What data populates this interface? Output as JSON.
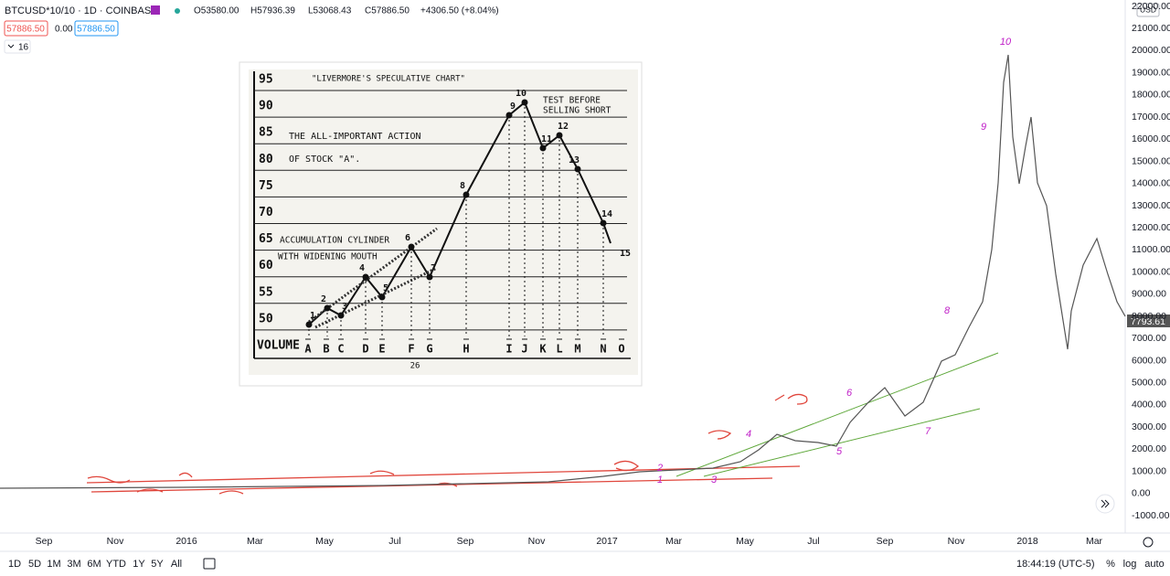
{
  "header": {
    "symbol": "BTCUSD*10/10 · 1D · COINBASE",
    "ohlc": [
      "O53580.00",
      "H57936.39",
      "L53068.43",
      "C57886.50",
      "+4306.50 (+8.04%)"
    ],
    "sell": "57886.50",
    "spread": "0.00",
    "buy": "57886.50",
    "indicators": "16"
  },
  "price_axis": {
    "currency": "USD",
    "labels": [
      "22000.00",
      "21000.00",
      "20000.00",
      "19000.00",
      "18000.00",
      "17000.00",
      "16000.00",
      "15000.00",
      "14000.00",
      "13000.00",
      "12000.00",
      "11000.00",
      "10000.00",
      "9000.00",
      "8000.00",
      "7000.00",
      "6000.00",
      "5000.00",
      "4000.00",
      "3000.00",
      "2000.00",
      "1000.00",
      "0.00",
      "-1000.00"
    ],
    "last_price": "7793.61"
  },
  "time_axis": [
    "Sep",
    "Nov",
    "2016",
    "Mar",
    "May",
    "Jul",
    "Sep",
    "Nov",
    "2017",
    "Mar",
    "May",
    "Jul",
    "Sep",
    "Nov",
    "2018",
    "Mar"
  ],
  "wave_labels": [
    "10",
    "9",
    "8",
    "7",
    "6",
    "5",
    "4",
    "3",
    "2",
    "1"
  ],
  "toolbar": {
    "timeframes": [
      "1D",
      "5D",
      "1M",
      "3M",
      "6M",
      "YTD",
      "1Y",
      "5Y",
      "All"
    ],
    "clock": "18:44:19 (UTC-5)",
    "percent": "%",
    "log": "log",
    "auto": "auto"
  },
  "inset": {
    "title": "\"LIVERMORE'S SPECULATIVE CHART\"",
    "note": [
      "TEST BEFORE",
      "SELLING SHORT"
    ],
    "caption": [
      "THE ALL-IMPORTANT ACTION",
      "OF STOCK \"A\"."
    ],
    "cylinder": [
      "ACCUMULATION CYLINDER",
      "WITH WIDENING MOUTH"
    ],
    "levels": [
      "95",
      "90",
      "85",
      "80",
      "75",
      "70",
      "65",
      "60",
      "55",
      "50"
    ],
    "volume": "VOLUME",
    "letters": [
      "A",
      "B",
      "C",
      "D",
      "E",
      "F",
      "G",
      "H",
      "I",
      "J",
      "K",
      "L",
      "M",
      "N",
      "O"
    ],
    "points": [
      "1",
      "2",
      "3",
      "4",
      "5",
      "6",
      "7",
      "8",
      "9",
      "10",
      "11",
      "12",
      "13",
      "14",
      "15"
    ],
    "page": "26"
  }
}
